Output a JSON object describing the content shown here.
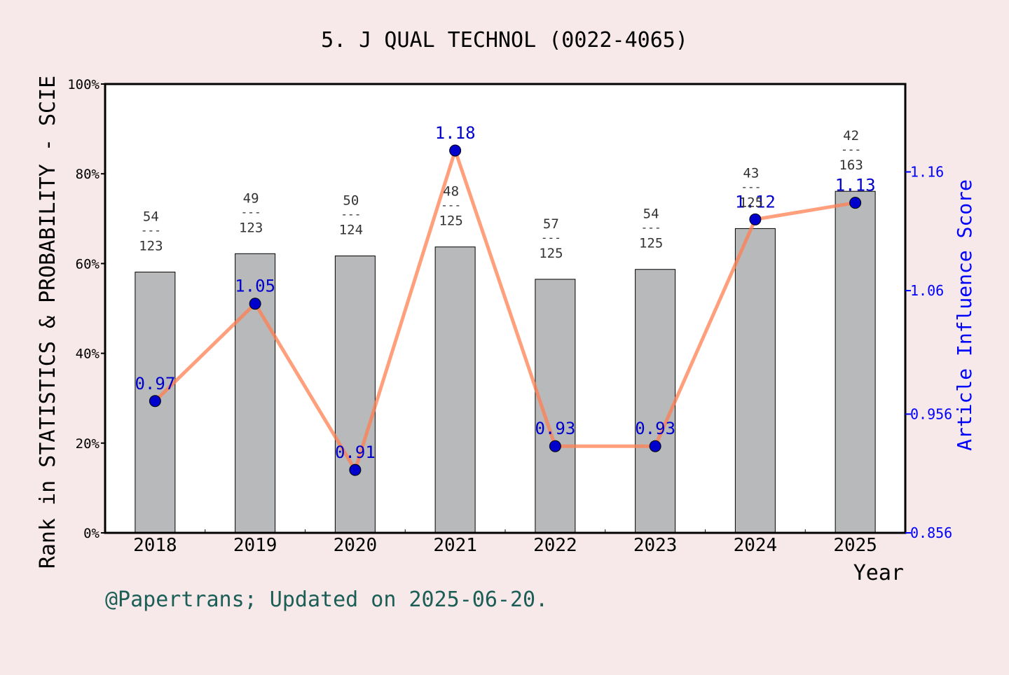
{
  "chart_data": {
    "type": "bar+line",
    "title": "5. J QUAL TECHNOL (0022-4065)",
    "xlabel": "Year",
    "ylabel_left": "Rank in STATISTICS & PROBABILITY - SCIE",
    "ylabel_right": "Article Influence Score",
    "footer": "@Papertrans; Updated on 2025-06-20.",
    "categories": [
      "2018",
      "2019",
      "2020",
      "2021",
      "2022",
      "2023",
      "2024",
      "2025"
    ],
    "left_axis": {
      "ylim": [
        0,
        100
      ],
      "ticks": [
        0,
        20,
        40,
        60,
        80,
        100
      ],
      "tick_labels": [
        "0%",
        "20%",
        "40%",
        "60%",
        "80%",
        "100%"
      ]
    },
    "right_axis": {
      "ylim": [
        0.856,
        1.234
      ],
      "ticks": [
        0.856,
        0.956,
        1.06,
        1.16
      ],
      "tick_labels": [
        "0.856",
        "0.956",
        "1.06",
        "1.16"
      ]
    },
    "bars": {
      "values_percent": [
        58.1,
        62.2,
        61.7,
        63.7,
        56.5,
        58.7,
        67.8,
        76.1
      ],
      "rank_labels": [
        {
          "rank": "54",
          "sep": "---",
          "total": "123"
        },
        {
          "rank": "49",
          "sep": "---",
          "total": "123"
        },
        {
          "rank": "50",
          "sep": "---",
          "total": "124"
        },
        {
          "rank": "48",
          "sep": "---",
          "total": "125"
        },
        {
          "rank": "57",
          "sep": "---",
          "total": "125"
        },
        {
          "rank": "54",
          "sep": "---",
          "total": "125"
        },
        {
          "rank": "43",
          "sep": "---",
          "total": "125"
        },
        {
          "rank": "42",
          "sep": "---",
          "total": "163"
        }
      ]
    },
    "line": {
      "values": [
        0.967,
        1.049,
        0.909,
        1.178,
        0.929,
        0.929,
        1.12,
        1.134
      ],
      "labels": [
        "0.97",
        "1.05",
        "0.91",
        "1.18",
        "0.93",
        "0.93",
        "1.12",
        "1.13"
      ]
    },
    "colors": {
      "bar_fill": "#b8b9bb",
      "line": "#ff7f50",
      "point": "#0000cd",
      "right_axis": "#0000ff",
      "footer": "#1a5e55",
      "background": "#f7e8ea"
    }
  }
}
